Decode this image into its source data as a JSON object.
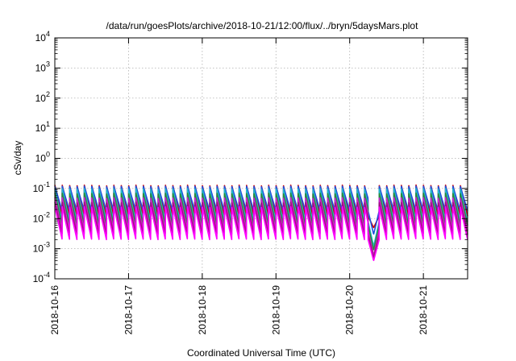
{
  "chart_data": {
    "type": "line",
    "title": "/data/run/goesPlots/archive/2018-10-21/12:00/flux/../bryn/5daysMars.plot",
    "xlabel": "Coordinated Universal Time (UTC)",
    "ylabel": "cSv/day",
    "x_tick_labels": [
      "2018-10-16",
      "2018-10-17",
      "2018-10-18",
      "2018-10-19",
      "2018-10-20",
      "2018-10-21"
    ],
    "x_range_days": [
      0,
      5.6
    ],
    "y_scale": "log",
    "ylim": [
      0.0001,
      10000
    ],
    "y_tick_exponents": [
      4,
      3,
      2,
      1,
      0,
      -1,
      -2,
      -3,
      -4
    ],
    "grid": true,
    "legend": "none",
    "cycle_period_days": 0.1,
    "dip_window_days": [
      4.25,
      4.4
    ],
    "series": [
      {
        "color": "#cc0000",
        "peak": 0.13,
        "trough": 0.012,
        "dip_min": 0.005
      },
      {
        "color": "#1f4fe0",
        "peak": 0.12,
        "trough": 0.018,
        "dip_min": 0.003
      },
      {
        "color": "#22b5c8",
        "peak": 0.1,
        "trough": 0.008,
        "dip_min": 0.0012
      },
      {
        "color": "#2a8a3a",
        "peak": 0.07,
        "trough": 0.006,
        "dip_min": 0.0009
      },
      {
        "color": "#cc22cc",
        "peak": 0.05,
        "trough": 0.004,
        "dip_min": 0.0006
      },
      {
        "color": "#a01080",
        "peak": 0.035,
        "trough": 0.003,
        "dip_min": 0.0005
      },
      {
        "color": "#ff00ff",
        "peak": 0.025,
        "trough": 0.002,
        "dip_min": 0.0004
      }
    ]
  }
}
